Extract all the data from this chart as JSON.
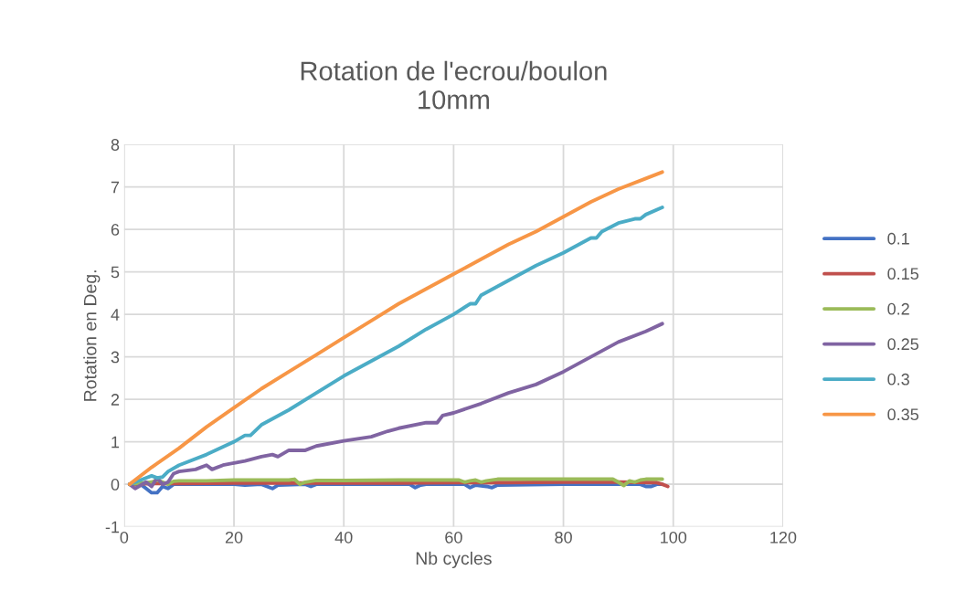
{
  "chart_data": {
    "type": "line",
    "title": "Rotation de l'ecrou/boulon\n10mm",
    "xlabel": "Nb cycles",
    "ylabel": "Rotation en Deg.",
    "xlim": [
      0,
      120
    ],
    "xticks": [
      0,
      20,
      40,
      60,
      80,
      100,
      120
    ],
    "ylim": [
      -1,
      8
    ],
    "yticks": [
      -1,
      0,
      1,
      2,
      3,
      4,
      5,
      6,
      7,
      8
    ],
    "grid": true,
    "legend": "right",
    "marker": "none",
    "line_style": "solid",
    "series": [
      {
        "name": "0.1",
        "color": "#4472c4",
        "x": [
          1,
          3,
          4,
          5,
          6,
          7,
          8,
          9,
          10,
          20,
          22,
          25,
          26,
          27,
          28,
          33,
          34,
          35,
          50,
          52,
          53,
          54,
          55,
          62,
          63,
          64,
          66,
          67,
          68,
          80,
          90,
          94,
          95,
          96,
          97,
          98
        ],
        "values": [
          0,
          0,
          -0.1,
          -0.2,
          -0.2,
          -0.05,
          -0.1,
          0,
          0,
          0,
          -0.02,
          0,
          -0.05,
          -0.1,
          -0.02,
          0,
          -0.05,
          0,
          0,
          0,
          -0.08,
          -0.02,
          0,
          0,
          -0.08,
          -0.02,
          -0.05,
          -0.08,
          -0.02,
          0,
          0,
          0,
          -0.05,
          -0.05,
          0,
          0
        ]
      },
      {
        "name": "0.15",
        "color": "#c0504d",
        "x": [
          1,
          5,
          10,
          20,
          30,
          40,
          50,
          60,
          70,
          80,
          90,
          97,
          98,
          99
        ],
        "values": [
          0,
          0.02,
          0.02,
          0.03,
          0.03,
          0.03,
          0.03,
          0.04,
          0.04,
          0.05,
          0.05,
          0.04,
          0,
          -0.05
        ]
      },
      {
        "name": "0.2",
        "color": "#9bbb59",
        "x": [
          1,
          5,
          6,
          7,
          8,
          9,
          10,
          15,
          20,
          30,
          31,
          32,
          33,
          35,
          40,
          50,
          60,
          61,
          62,
          63,
          64,
          65,
          66,
          68,
          80,
          89,
          90,
          91,
          92,
          93,
          94,
          95,
          98
        ],
        "values": [
          0,
          0.05,
          0.1,
          0.05,
          0,
          0.07,
          0.08,
          0.08,
          0.1,
          0.1,
          0.12,
          0,
          0.05,
          0.09,
          0.09,
          0.1,
          0.1,
          0.1,
          0.05,
          0.08,
          0.1,
          0.05,
          0.08,
          0.12,
          0.12,
          0.12,
          0.05,
          -0.03,
          0.08,
          0.05,
          0.1,
          0.12,
          0.12
        ]
      },
      {
        "name": "0.25",
        "color": "#8064a2",
        "x": [
          1,
          2,
          4,
          5,
          6,
          7,
          8,
          9,
          10,
          13,
          15,
          16,
          18,
          20,
          22,
          25,
          27,
          28,
          30,
          33,
          35,
          40,
          45,
          48,
          50,
          55,
          57,
          58,
          60,
          65,
          70,
          75,
          80,
          85,
          90,
          95,
          98
        ],
        "values": [
          0,
          -0.1,
          0.05,
          -0.05,
          0.15,
          0.0,
          0.05,
          0.25,
          0.3,
          0.35,
          0.45,
          0.35,
          0.45,
          0.5,
          0.55,
          0.65,
          0.7,
          0.65,
          0.8,
          0.8,
          0.9,
          1.02,
          1.12,
          1.25,
          1.32,
          1.45,
          1.45,
          1.62,
          1.68,
          1.9,
          2.15,
          2.35,
          2.65,
          3.0,
          3.35,
          3.6,
          3.78
        ]
      },
      {
        "name": "0.3",
        "color": "#4bacc6",
        "x": [
          1,
          3,
          5,
          6,
          7,
          8,
          10,
          15,
          20,
          22,
          23,
          25,
          30,
          35,
          40,
          45,
          50,
          55,
          60,
          63,
          64,
          65,
          70,
          75,
          80,
          85,
          86,
          87,
          90,
          93,
          94,
          95,
          98
        ],
        "values": [
          0,
          0.1,
          0.2,
          0.15,
          0.17,
          0.3,
          0.45,
          0.7,
          1.0,
          1.15,
          1.15,
          1.4,
          1.75,
          2.15,
          2.55,
          2.9,
          3.25,
          3.65,
          4.0,
          4.25,
          4.25,
          4.45,
          4.8,
          5.15,
          5.45,
          5.8,
          5.8,
          5.95,
          6.15,
          6.25,
          6.25,
          6.35,
          6.52
        ]
      },
      {
        "name": "0.35",
        "color": "#f79646",
        "x": [
          1,
          5,
          10,
          15,
          20,
          25,
          30,
          35,
          40,
          45,
          50,
          55,
          60,
          65,
          70,
          75,
          80,
          85,
          90,
          95,
          98
        ],
        "values": [
          0,
          0.4,
          0.85,
          1.35,
          1.8,
          2.25,
          2.65,
          3.05,
          3.45,
          3.85,
          4.25,
          4.6,
          4.95,
          5.3,
          5.65,
          5.95,
          6.3,
          6.65,
          6.95,
          7.2,
          7.35
        ]
      }
    ]
  }
}
